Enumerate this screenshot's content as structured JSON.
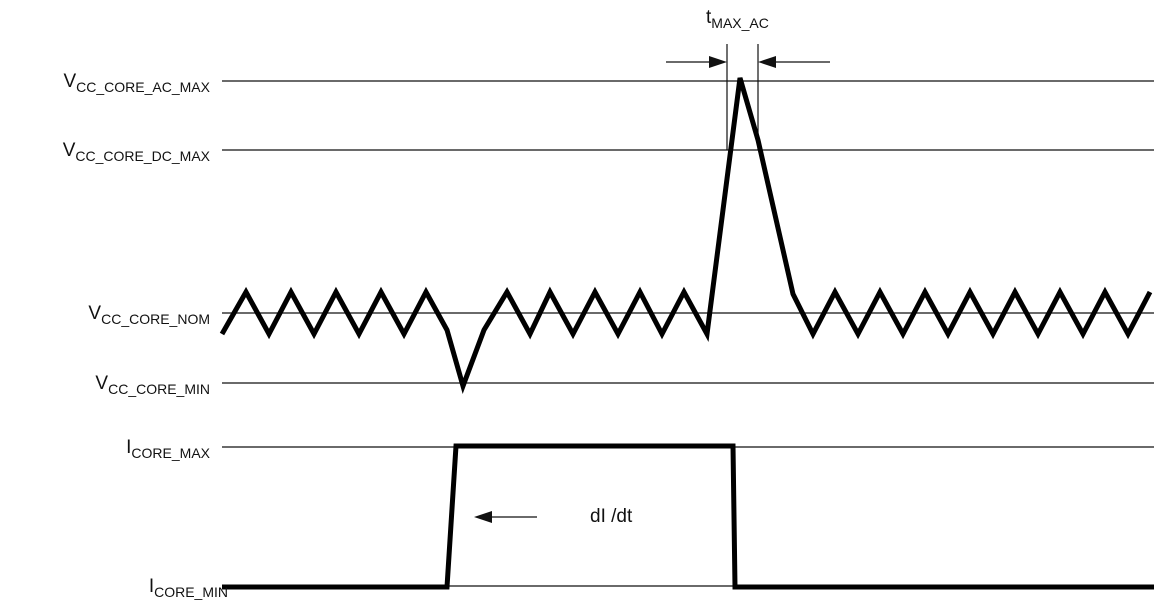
{
  "labels": {
    "vcc_ac_max": {
      "main": "V",
      "sub": "CC_CORE_AC_MAX"
    },
    "vcc_dc_max": {
      "main": "V",
      "sub": "CC_CORE_DC_MAX"
    },
    "vcc_nom": {
      "main": "V",
      "sub": "CC_CORE_NOM"
    },
    "vcc_min": {
      "main": "V",
      "sub": "CC_CORE_MIN"
    },
    "icore_max": {
      "main": "I",
      "sub": "CORE_MAX"
    },
    "icore_min": {
      "main": "I",
      "sub": "CORE_MIN"
    },
    "t_max_ac": {
      "main": "t",
      "sub": "MAX_AC"
    },
    "di_dt": "dI /dt"
  },
  "colors": {
    "line": "#111111",
    "waveform": "#000000",
    "background": "#ffffff"
  }
}
